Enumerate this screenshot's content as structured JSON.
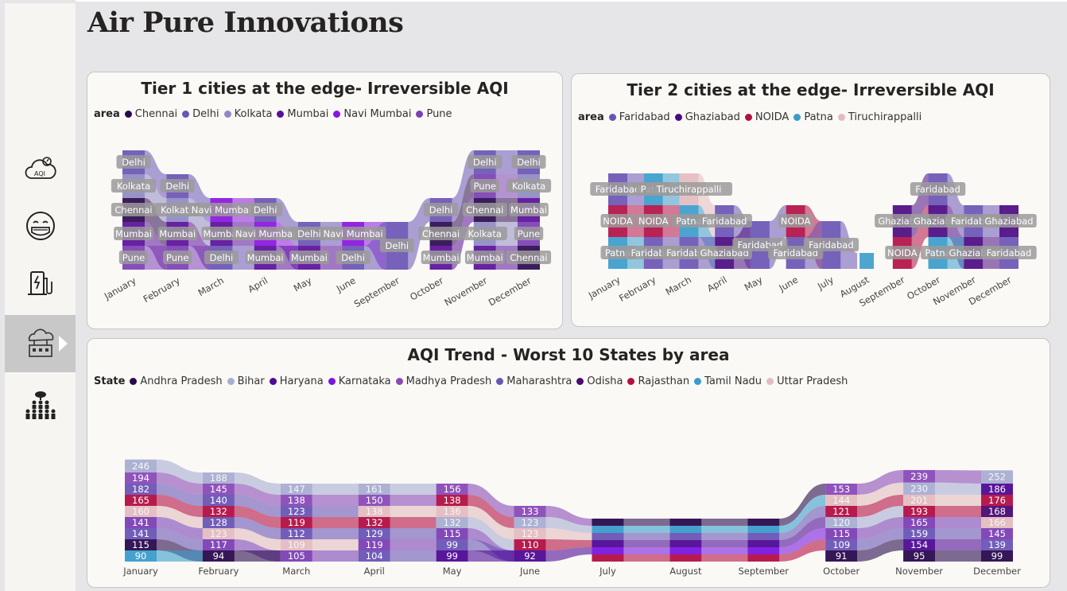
{
  "title": "Air Pure Innovations",
  "sidebar": {
    "items": [
      {
        "icon": "aqi-cloud-icon",
        "label": "AQI"
      },
      {
        "icon": "face-mask-icon"
      },
      {
        "icon": "ev-charger-icon"
      },
      {
        "icon": "industry-pollution-icon",
        "active": true
      },
      {
        "icon": "people-tree-icon"
      }
    ]
  },
  "tier1": {
    "title": "Tier 1 cities at the edge- Irreversible AQI",
    "legend_title": "area",
    "legend": [
      {
        "name": "Chennai",
        "color": "#2a0a4d"
      },
      {
        "name": "Delhi",
        "color": "#6a54b5"
      },
      {
        "name": "Kolkata",
        "color": "#8f8ac2"
      },
      {
        "name": "Mumbai",
        "color": "#5a0e9a"
      },
      {
        "name": "Navi Mumbai",
        "color": "#8a14e0"
      },
      {
        "name": "Pune",
        "color": "#7c3fb5"
      }
    ],
    "chart_data": {
      "type": "ribbon",
      "categories": [
        "January",
        "February",
        "March",
        "April",
        "May",
        "June",
        "September",
        "October",
        "November",
        "December"
      ],
      "labels": [
        [
          "Delhi",
          "Kolkata",
          "Chennai",
          "Mumbai",
          "Pune"
        ],
        [
          "Delhi",
          "Kolkata",
          "Mumbai",
          "Pune"
        ],
        [
          "Navi Mumbai",
          "Mumbai",
          "Delhi"
        ],
        [
          "Delhi",
          "Navi Mumbai",
          "Mumbai"
        ],
        [
          "Delhi",
          "Mumbai"
        ],
        [
          "Navi Mumbai",
          "Delhi"
        ],
        [
          "Delhi"
        ],
        [
          "Delhi",
          "Chennai",
          "Mumbai"
        ],
        [
          "Delhi",
          "Pune",
          "Chennai",
          "Kolkata",
          "Mumbai"
        ],
        [
          "Delhi",
          "Kolkata",
          "Mumbai",
          "Pune",
          "Chennai"
        ]
      ]
    }
  },
  "tier2": {
    "title": "Tier 2 cities at the edge- Irreversible AQI",
    "legend_title": "area",
    "legend": [
      {
        "name": "Faridabad",
        "color": "#6a54b5"
      },
      {
        "name": "Ghaziabad",
        "color": "#4b0a82"
      },
      {
        "name": "NOIDA",
        "color": "#b30f45"
      },
      {
        "name": "Patna",
        "color": "#3a9ccb"
      },
      {
        "name": "Tiruchirappalli",
        "color": "#e3bcc0"
      }
    ],
    "chart_data": {
      "type": "ribbon",
      "categories": [
        "January",
        "February",
        "March",
        "April",
        "May",
        "June",
        "July",
        "August",
        "September",
        "October",
        "November",
        "December"
      ],
      "labels": [
        [
          "Faridabad",
          "NOIDA",
          "Patna"
        ],
        [
          "Patna",
          "NOIDA",
          "Faridabad"
        ],
        [
          "Tiruchirappalli",
          "Patna",
          "Faridabad"
        ],
        [
          "Faridabad",
          "Ghaziabad"
        ],
        [
          "Faridabad"
        ],
        [
          "NOIDA",
          "Faridabad"
        ],
        [
          "Faridabad"
        ],
        [],
        [
          "Ghaziabad",
          "NOIDA"
        ],
        [
          "Faridabad",
          "Ghaziabad",
          "Patna"
        ],
        [
          "Faridabad",
          "Ghaziabad"
        ],
        [
          "Ghaziabad",
          "Faridabad"
        ]
      ]
    }
  },
  "trend": {
    "title": "AQI Trend - Worst 10 States by area",
    "legend_title": "State",
    "legend": [
      {
        "name": "Andhra Pradesh",
        "color": "#2a0a4d"
      },
      {
        "name": "Bihar",
        "color": "#a9aed2"
      },
      {
        "name": "Haryana",
        "color": "#4f0a96"
      },
      {
        "name": "Karnataka",
        "color": "#7a16e0"
      },
      {
        "name": "Madhya Pradesh",
        "color": "#8a4ab8"
      },
      {
        "name": "Maharashtra",
        "color": "#6a54b5"
      },
      {
        "name": "Odisha",
        "color": "#4a0a73"
      },
      {
        "name": "Rajasthan",
        "color": "#b30f45"
      },
      {
        "name": "Tamil Nadu",
        "color": "#3a9ccb"
      },
      {
        "name": "Uttar Pradesh",
        "color": "#e3bcc0"
      }
    ],
    "chart_data": {
      "type": "ribbon",
      "categories": [
        "January",
        "February",
        "March",
        "April",
        "May",
        "June",
        "July",
        "August",
        "September",
        "October",
        "November",
        "December"
      ],
      "columns": [
        [
          {
            "v": 246,
            "c": "#a9aed2"
          },
          {
            "v": 194,
            "c": "#8a4ab8"
          },
          {
            "v": 182,
            "c": "#6a54b5"
          },
          {
            "v": 165,
            "c": "#b30f45"
          },
          {
            "v": 160,
            "c": "#e3bcc0"
          },
          {
            "v": 141,
            "c": "#7c3fb5"
          },
          {
            "v": 141,
            "c": "#6a54b5"
          },
          {
            "v": 115,
            "c": "#2a0a4d"
          },
          {
            "v": 90,
            "c": "#3a9ccb"
          }
        ],
        [
          {
            "v": 188,
            "c": "#a9aed2"
          },
          {
            "v": 145,
            "c": "#8a4ab8"
          },
          {
            "v": 140,
            "c": "#6a54b5"
          },
          {
            "v": 132,
            "c": "#b30f45"
          },
          {
            "v": 128,
            "c": "#6a54b5"
          },
          {
            "v": 123,
            "c": "#e3bcc0"
          },
          {
            "v": 117,
            "c": "#7c3fb5"
          },
          {
            "v": 94,
            "c": "#2a0a4d"
          }
        ],
        [
          {
            "v": 147,
            "c": "#a9aed2"
          },
          {
            "v": 138,
            "c": "#8a4ab8"
          },
          {
            "v": 123,
            "c": "#6a54b5"
          },
          {
            "v": 119,
            "c": "#b30f45"
          },
          {
            "v": 112,
            "c": "#6a54b5"
          },
          {
            "v": 109,
            "c": "#e3bcc0"
          },
          {
            "v": 105,
            "c": "#7c3fb5"
          }
        ],
        [
          {
            "v": 161,
            "c": "#a9aed2"
          },
          {
            "v": 150,
            "c": "#8a4ab8"
          },
          {
            "v": 138,
            "c": "#e3bcc0"
          },
          {
            "v": 132,
            "c": "#b30f45"
          },
          {
            "v": 129,
            "c": "#6a54b5"
          },
          {
            "v": 119,
            "c": "#7c3fb5"
          },
          {
            "v": 104,
            "c": "#6a54b5"
          }
        ],
        [
          {
            "v": 156,
            "c": "#8a4ab8"
          },
          {
            "v": 138,
            "c": "#b30f45"
          },
          {
            "v": 136,
            "c": "#e3bcc0"
          },
          {
            "v": 132,
            "c": "#a9aed2"
          },
          {
            "v": 115,
            "c": "#7c3fb5"
          },
          {
            "v": 99,
            "c": "#6a54b5"
          },
          {
            "v": 99,
            "c": "#4f0a96"
          }
        ],
        [
          {
            "v": 133,
            "c": "#8a4ab8"
          },
          {
            "v": 123,
            "c": "#a9aed2"
          },
          {
            "v": 123,
            "c": "#e3bcc0"
          },
          {
            "v": 110,
            "c": "#b30f45"
          },
          {
            "v": 92,
            "c": "#4f0a96"
          }
        ],
        [],
        [],
        [],
        [
          {
            "v": 153,
            "c": "#8a4ab8"
          },
          {
            "v": 144,
            "c": "#e3bcc0"
          },
          {
            "v": 121,
            "c": "#b30f45"
          },
          {
            "v": 120,
            "c": "#a9aed2"
          },
          {
            "v": 115,
            "c": "#7c3fb5"
          },
          {
            "v": 109,
            "c": "#6a54b5"
          },
          {
            "v": 91,
            "c": "#2a0a4d"
          }
        ],
        [
          {
            "v": 239,
            "c": "#8a4ab8"
          },
          {
            "v": 230,
            "c": "#a9aed2"
          },
          {
            "v": 201,
            "c": "#e3bcc0"
          },
          {
            "v": 193,
            "c": "#b30f45"
          },
          {
            "v": 165,
            "c": "#7c3fb5"
          },
          {
            "v": 159,
            "c": "#6a54b5"
          },
          {
            "v": 154,
            "c": "#4f0a96"
          },
          {
            "v": 95,
            "c": "#2a0a4d"
          }
        ],
        [
          {
            "v": 252,
            "c": "#a9aed2"
          },
          {
            "v": 186,
            "c": "#4f0a96"
          },
          {
            "v": 176,
            "c": "#b30f45"
          },
          {
            "v": 168,
            "c": "#4a0a73"
          },
          {
            "v": 166,
            "c": "#e3bcc0"
          },
          {
            "v": 145,
            "c": "#7c3fb5"
          },
          {
            "v": 139,
            "c": "#6a54b5"
          },
          {
            "v": 99,
            "c": "#2a0a4d"
          }
        ]
      ]
    }
  }
}
